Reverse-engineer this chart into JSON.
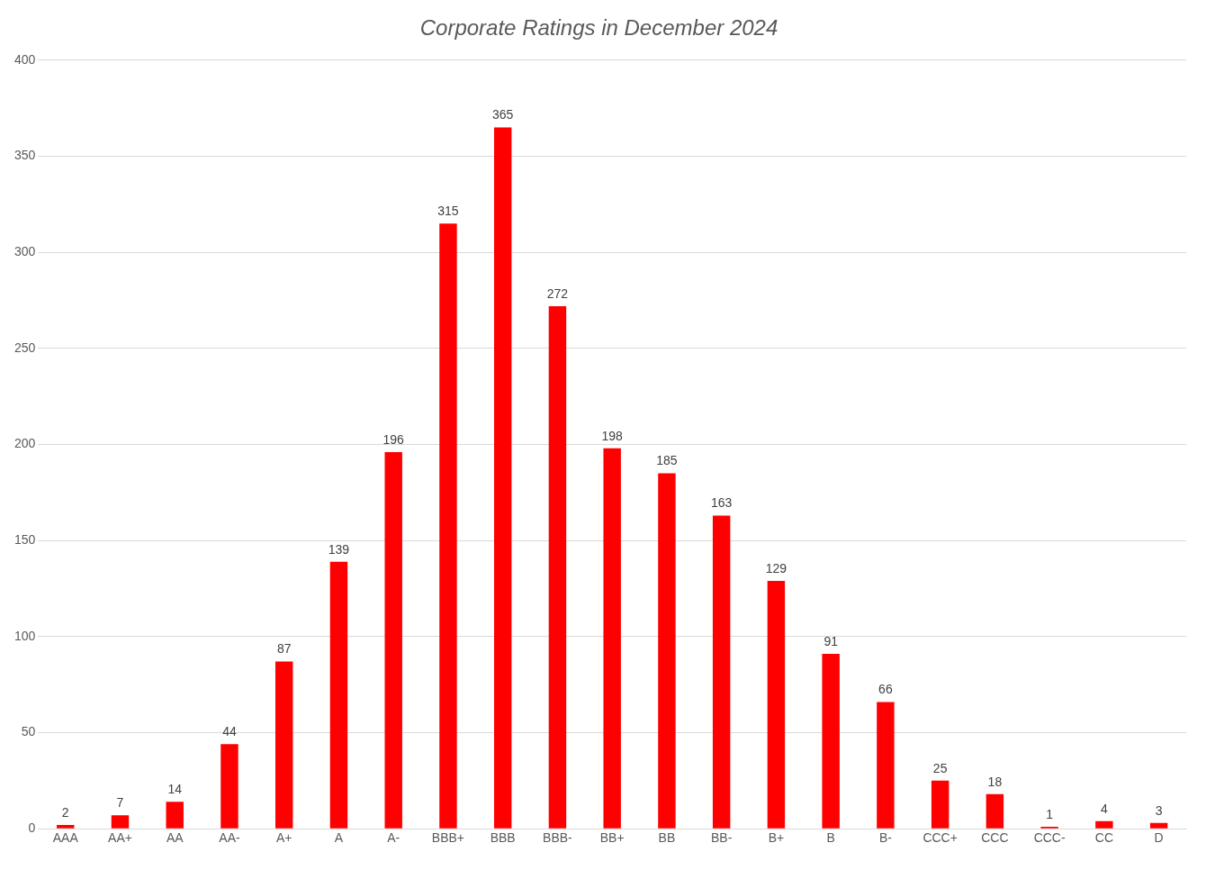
{
  "chart_data": {
    "type": "bar",
    "title": "Corporate Ratings in December 2024",
    "categories": [
      "AAA",
      "AA+",
      "AA",
      "AA-",
      "A+",
      "A",
      "A-",
      "BBB+",
      "BBB",
      "BBB-",
      "BB+",
      "BB",
      "BB-",
      "B+",
      "B",
      "B-",
      "CCC+",
      "CCC",
      "CCC-",
      "CC",
      "D"
    ],
    "values": [
      2,
      7,
      14,
      44,
      87,
      139,
      196,
      315,
      365,
      272,
      198,
      185,
      163,
      129,
      91,
      66,
      25,
      18,
      1,
      4,
      3
    ],
    "color": "#ff0000",
    "ylim": [
      0,
      400
    ],
    "yticks": [
      0,
      50,
      100,
      150,
      200,
      250,
      300,
      350,
      400
    ],
    "grid": "y",
    "data_labels": true,
    "legend": false
  }
}
